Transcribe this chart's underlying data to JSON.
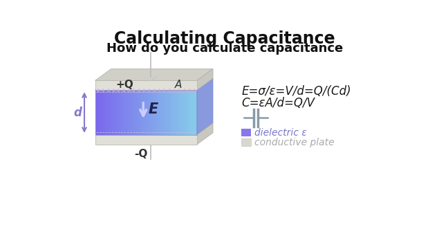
{
  "title": "Calculating Capacitance",
  "subtitle": "How do you calculate capacitance",
  "bg_color": "#ffffff",
  "title_color": "#111111",
  "subtitle_color": "#111111",
  "formula1": "E=σ/ε=V/d=Q/(Cd)",
  "formula2": "C=εA/d=Q/V",
  "formula_color": "#1a1a1a",
  "label_pQ": "+Q",
  "label_nQ": "-Q",
  "label_A": "A",
  "label_d": "d",
  "label_E": "E",
  "dielectric_left": "#7b68ee",
  "dielectric_right": "#87ceeb",
  "plate_color": "#e0e0d8",
  "plate_edge": "#c0c0b8",
  "plate_top_color": "#d0d0c8",
  "plate_right_color": "#c8c8c0",
  "diel_right_color": "#8899dd",
  "diel_top_color": "#a090ee",
  "plus_color": "#bbaadd",
  "dash_color": "#ccbbdd",
  "d_arrow_color": "#8877cc",
  "wire_color": "#bbbbbb",
  "E_arrow_color": "#ccccff",
  "E_text_color": "#222244",
  "cap_color": "#8899aa",
  "legend_dielectric_label": "dielectric ε",
  "legend_plate_label": "conductive plate",
  "legend_dielectric_color": "#8877ee",
  "legend_plate_color": "#d8d8d0",
  "legend_label_color": "#7777cc",
  "legend_plate_label_color": "#aaaaaa"
}
